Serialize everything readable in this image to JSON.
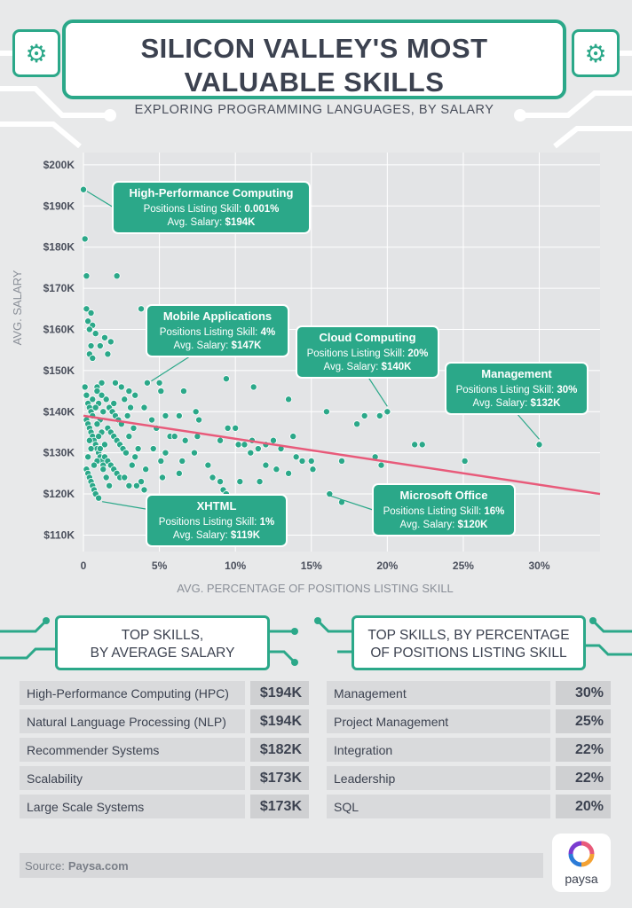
{
  "header": {
    "title": "SILICON VALLEY'S MOST VALUABLE SKILLS",
    "subtitle": "EXPLORING PROGRAMMING LANGUAGES, BY SALARY"
  },
  "chart_data": {
    "type": "scatter",
    "xlabel": "AVG. PERCENTAGE OF POSITIONS LISTING SKILL",
    "ylabel": "AVG. SALARY",
    "xlim": [
      0,
      34
    ],
    "ylim": [
      106,
      203
    ],
    "x_ticks": [
      "0",
      "5%",
      "10%",
      "15%",
      "20%",
      "25%",
      "30%"
    ],
    "y_ticks": [
      "$110K",
      "$120K",
      "$130K",
      "$140K",
      "$150K",
      "$160K",
      "$170K",
      "$180K",
      "$190K",
      "$200K"
    ],
    "grid": true,
    "trendline": {
      "x": [
        0,
        34
      ],
      "y": [
        139,
        120
      ],
      "color": "#e85a7a"
    },
    "point_color": "#2ba889",
    "points": [
      [
        0.001,
        194
      ],
      [
        0.1,
        182
      ],
      [
        0.2,
        173
      ],
      [
        2.2,
        173
      ],
      [
        3.8,
        165
      ],
      [
        0.2,
        165
      ],
      [
        0.5,
        164
      ],
      [
        0.3,
        162
      ],
      [
        0.6,
        161
      ],
      [
        0.4,
        160
      ],
      [
        0.8,
        159
      ],
      [
        1.4,
        158
      ],
      [
        1.8,
        157
      ],
      [
        0.5,
        156
      ],
      [
        1.1,
        156
      ],
      [
        0.4,
        154
      ],
      [
        0.6,
        153
      ],
      [
        1.6,
        154
      ],
      [
        4.2,
        147
      ],
      [
        5.0,
        147
      ],
      [
        5.1,
        145
      ],
      [
        6.6,
        145
      ],
      [
        9.4,
        148
      ],
      [
        11.2,
        146
      ],
      [
        13.5,
        143
      ],
      [
        2.5,
        146
      ],
      [
        2.1,
        147
      ],
      [
        3.0,
        145
      ],
      [
        1.2,
        147
      ],
      [
        0.9,
        146
      ],
      [
        3.4,
        144
      ],
      [
        4.0,
        141
      ],
      [
        4.5,
        138
      ],
      [
        5.4,
        139
      ],
      [
        6.3,
        139
      ],
      [
        7.4,
        140
      ],
      [
        7.6,
        138
      ],
      [
        4.8,
        136
      ],
      [
        5.7,
        134
      ],
      [
        6.0,
        134
      ],
      [
        6.7,
        133
      ],
      [
        7.5,
        134
      ],
      [
        4.6,
        131
      ],
      [
        5.4,
        130
      ],
      [
        5.1,
        128
      ],
      [
        6.5,
        128
      ],
      [
        7.3,
        130
      ],
      [
        8.2,
        127
      ],
      [
        9.0,
        133
      ],
      [
        9.5,
        136
      ],
      [
        10.0,
        136
      ],
      [
        10.2,
        132
      ],
      [
        10.6,
        132
      ],
      [
        11.1,
        133
      ],
      [
        11.5,
        131
      ],
      [
        11.0,
        130
      ],
      [
        12.0,
        132
      ],
      [
        12.5,
        133
      ],
      [
        12.0,
        127
      ],
      [
        13.0,
        131
      ],
      [
        13.8,
        134
      ],
      [
        14.0,
        129
      ],
      [
        14.4,
        128
      ],
      [
        15.0,
        128
      ],
      [
        15.1,
        126
      ],
      [
        13.5,
        125
      ],
      [
        12.7,
        126
      ],
      [
        11.6,
        123
      ],
      [
        10.3,
        123
      ],
      [
        9.0,
        123
      ],
      [
        8.5,
        124
      ],
      [
        6.3,
        125
      ],
      [
        5.2,
        124
      ],
      [
        4.1,
        126
      ],
      [
        3.8,
        123
      ],
      [
        3.5,
        122
      ],
      [
        4.0,
        121
      ],
      [
        9.2,
        121
      ],
      [
        9.4,
        120
      ],
      [
        16.0,
        140
      ],
      [
        18.0,
        137
      ],
      [
        18.5,
        139
      ],
      [
        19.5,
        139
      ],
      [
        20.0,
        140
      ],
      [
        17.0,
        128
      ],
      [
        19.2,
        129
      ],
      [
        19.6,
        127
      ],
      [
        21.8,
        132
      ],
      [
        22.3,
        132
      ],
      [
        25.1,
        128
      ],
      [
        30.0,
        132
      ],
      [
        16.2,
        120
      ],
      [
        17.0,
        118
      ],
      [
        0.1,
        146
      ],
      [
        0.2,
        144
      ],
      [
        0.3,
        142
      ],
      [
        0.4,
        141
      ],
      [
        0.5,
        140
      ],
      [
        0.6,
        139
      ],
      [
        0.2,
        138
      ],
      [
        0.3,
        137
      ],
      [
        0.4,
        136
      ],
      [
        0.5,
        135
      ],
      [
        0.6,
        134
      ],
      [
        0.7,
        133
      ],
      [
        0.8,
        132
      ],
      [
        0.9,
        131
      ],
      [
        1.0,
        130
      ],
      [
        1.1,
        129
      ],
      [
        1.2,
        128
      ],
      [
        1.3,
        127
      ],
      [
        0.2,
        126
      ],
      [
        0.3,
        125
      ],
      [
        0.4,
        124
      ],
      [
        0.5,
        123
      ],
      [
        0.6,
        122
      ],
      [
        0.7,
        121
      ],
      [
        0.8,
        120
      ],
      [
        1.0,
        119
      ],
      [
        1.5,
        143
      ],
      [
        1.7,
        141
      ],
      [
        1.9,
        140
      ],
      [
        2.1,
        139
      ],
      [
        2.3,
        138
      ],
      [
        2.5,
        137
      ],
      [
        1.6,
        136
      ],
      [
        1.8,
        135
      ],
      [
        2.0,
        134
      ],
      [
        2.2,
        133
      ],
      [
        2.4,
        132
      ],
      [
        2.6,
        131
      ],
      [
        2.8,
        130
      ],
      [
        1.4,
        129
      ],
      [
        1.6,
        128
      ],
      [
        1.8,
        127
      ],
      [
        2.0,
        126
      ],
      [
        2.2,
        125
      ],
      [
        2.4,
        124
      ],
      [
        2.7,
        124
      ],
      [
        3.0,
        122
      ],
      [
        3.2,
        127
      ],
      [
        3.4,
        129
      ],
      [
        3.6,
        131
      ],
      [
        3.0,
        134
      ],
      [
        3.3,
        136
      ],
      [
        2.9,
        139
      ],
      [
        3.1,
        141
      ],
      [
        2.7,
        143
      ],
      [
        2.0,
        142
      ],
      [
        0.9,
        145
      ],
      [
        1.2,
        144
      ],
      [
        1.0,
        142
      ],
      [
        1.3,
        140
      ],
      [
        1.1,
        138
      ],
      [
        0.9,
        137
      ],
      [
        1.2,
        135
      ],
      [
        1.0,
        134
      ],
      [
        1.4,
        132
      ],
      [
        1.1,
        131
      ],
      [
        0.9,
        128
      ],
      [
        1.3,
        126
      ],
      [
        1.5,
        124
      ],
      [
        1.7,
        122
      ],
      [
        0.3,
        129
      ],
      [
        0.5,
        131
      ],
      [
        0.7,
        127
      ],
      [
        0.4,
        133
      ],
      [
        0.6,
        143
      ],
      [
        0.8,
        141
      ]
    ],
    "annotations": [
      {
        "name": "High-Performance Computing",
        "lines": [
          "Positions Listing Skill: ",
          "0.001%",
          "Avg. Salary: ",
          "$194K"
        ]
      },
      {
        "name": "Mobile Applications",
        "lines": [
          "Positions Listing Skill: ",
          "4%",
          "Avg. Salary: ",
          "$147K"
        ]
      },
      {
        "name": "Cloud Computing",
        "lines": [
          "Positions Listing Skill: ",
          "20%",
          "Avg. Salary: ",
          "$140K"
        ]
      },
      {
        "name": "Management",
        "lines": [
          "Positions Listing Skill: ",
          "30%",
          "Avg. Salary: ",
          "$132K"
        ]
      },
      {
        "name": "XHTML",
        "lines": [
          "Positions Listing Skill: ",
          "1%",
          "Avg. Salary: ",
          "$119K"
        ]
      },
      {
        "name": "Microsoft Office",
        "lines": [
          "Positions Listing Skill: ",
          "16%",
          "Avg. Salary: ",
          "$120K"
        ]
      }
    ]
  },
  "tables": {
    "salary": {
      "title_line1": "TOP SKILLS,",
      "title_line2": "BY AVERAGE SALARY",
      "rows": [
        {
          "name": "High-Performance Computing (HPC)",
          "value": "$194K"
        },
        {
          "name": "Natural Language Processing (NLP)",
          "value": "$194K"
        },
        {
          "name": "Recommender Systems",
          "value": "$182K"
        },
        {
          "name": "Scalability",
          "value": "$173K"
        },
        {
          "name": "Large Scale Systems",
          "value": "$173K"
        }
      ]
    },
    "percentage": {
      "title_line1": "TOP SKILLS, BY PERCENTAGE",
      "title_line2": "OF POSITIONS LISTING SKILL",
      "rows": [
        {
          "name": "Management",
          "value": "30%"
        },
        {
          "name": "Project Management",
          "value": "25%"
        },
        {
          "name": "Integration",
          "value": "22%"
        },
        {
          "name": "Leadership",
          "value": "22%"
        },
        {
          "name": "SQL",
          "value": "20%"
        }
      ]
    }
  },
  "footer": {
    "source_label": "Source:",
    "source_value": "Paysa.com",
    "logo_text": "paysa"
  },
  "colors": {
    "accent": "#2ba889",
    "trend": "#e85a7a",
    "text": "#3c4250"
  }
}
